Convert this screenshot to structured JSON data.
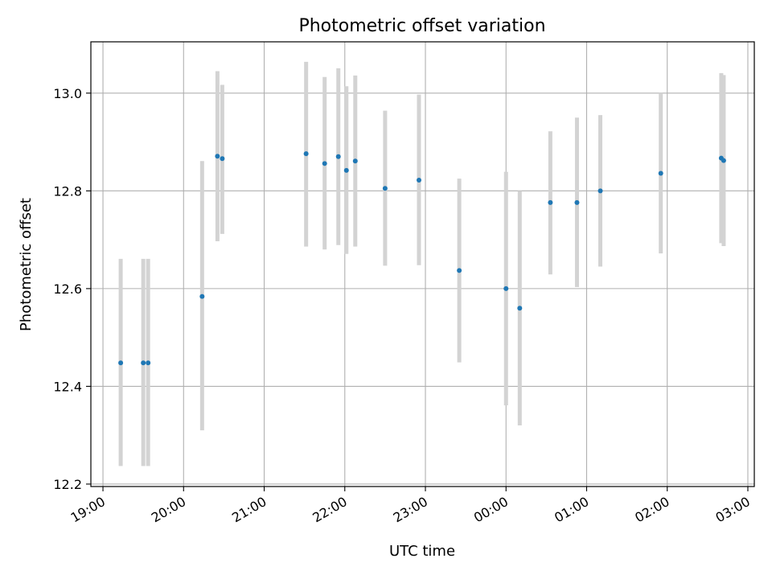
{
  "chart_data": {
    "type": "scatter",
    "title": "Photometric offset variation",
    "xlabel": "UTC time",
    "ylabel": "Photometric offset",
    "grid": true,
    "legend": "none",
    "colors": {
      "point": "#1f77b4",
      "errorbar": "#d3d3d3",
      "grid": "#b0b0b0",
      "axis": "#000000"
    },
    "x_axis": {
      "range_hours": [
        18.85,
        27.08
      ],
      "ticks": [
        {
          "value": 19,
          "label": "19:00"
        },
        {
          "value": 20,
          "label": "20:00"
        },
        {
          "value": 21,
          "label": "21:00"
        },
        {
          "value": 22,
          "label": "22:00"
        },
        {
          "value": 23,
          "label": "23:00"
        },
        {
          "value": 24,
          "label": "00:00"
        },
        {
          "value": 25,
          "label": "01:00"
        },
        {
          "value": 26,
          "label": "02:00"
        },
        {
          "value": 27,
          "label": "03:00"
        }
      ]
    },
    "y_axis": {
      "range": [
        12.195,
        13.105
      ],
      "ticks": [
        {
          "value": 12.2,
          "label": "12.2"
        },
        {
          "value": 12.4,
          "label": "12.4"
        },
        {
          "value": 12.6,
          "label": "12.6"
        },
        {
          "value": 12.8,
          "label": "12.8"
        },
        {
          "value": 13.0,
          "label": "13.0"
        }
      ]
    },
    "points": [
      {
        "t": 19.22,
        "y": 12.448,
        "lo": 12.237,
        "hi": 12.661
      },
      {
        "t": 19.5,
        "y": 12.448,
        "lo": 12.237,
        "hi": 12.661
      },
      {
        "t": 19.56,
        "y": 12.448,
        "lo": 12.237,
        "hi": 12.661
      },
      {
        "t": 20.23,
        "y": 12.584,
        "lo": 12.31,
        "hi": 12.861
      },
      {
        "t": 20.42,
        "y": 12.871,
        "lo": 12.697,
        "hi": 13.045
      },
      {
        "t": 20.48,
        "y": 12.866,
        "lo": 12.712,
        "hi": 13.017
      },
      {
        "t": 21.52,
        "y": 12.876,
        "lo": 12.686,
        "hi": 13.064
      },
      {
        "t": 21.75,
        "y": 12.856,
        "lo": 12.68,
        "hi": 13.033
      },
      {
        "t": 21.92,
        "y": 12.87,
        "lo": 12.689,
        "hi": 13.051
      },
      {
        "t": 22.02,
        "y": 12.842,
        "lo": 12.671,
        "hi": 13.014
      },
      {
        "t": 22.13,
        "y": 12.861,
        "lo": 12.686,
        "hi": 13.036
      },
      {
        "t": 22.5,
        "y": 12.805,
        "lo": 12.647,
        "hi": 12.964
      },
      {
        "t": 22.92,
        "y": 12.822,
        "lo": 12.648,
        "hi": 12.997
      },
      {
        "t": 23.42,
        "y": 12.637,
        "lo": 12.449,
        "hi": 12.825
      },
      {
        "t": 24.0,
        "y": 12.6,
        "lo": 12.361,
        "hi": 12.839
      },
      {
        "t": 24.17,
        "y": 12.56,
        "lo": 12.32,
        "hi": 12.8
      },
      {
        "t": 24.55,
        "y": 12.776,
        "lo": 12.629,
        "hi": 12.922
      },
      {
        "t": 24.88,
        "y": 12.776,
        "lo": 12.603,
        "hi": 12.95
      },
      {
        "t": 25.17,
        "y": 12.8,
        "lo": 12.645,
        "hi": 12.955
      },
      {
        "t": 25.92,
        "y": 12.836,
        "lo": 12.672,
        "hi": 13.0
      },
      {
        "t": 26.67,
        "y": 12.867,
        "lo": 12.693,
        "hi": 13.041
      },
      {
        "t": 26.7,
        "y": 12.862,
        "lo": 12.687,
        "hi": 13.037
      }
    ]
  }
}
